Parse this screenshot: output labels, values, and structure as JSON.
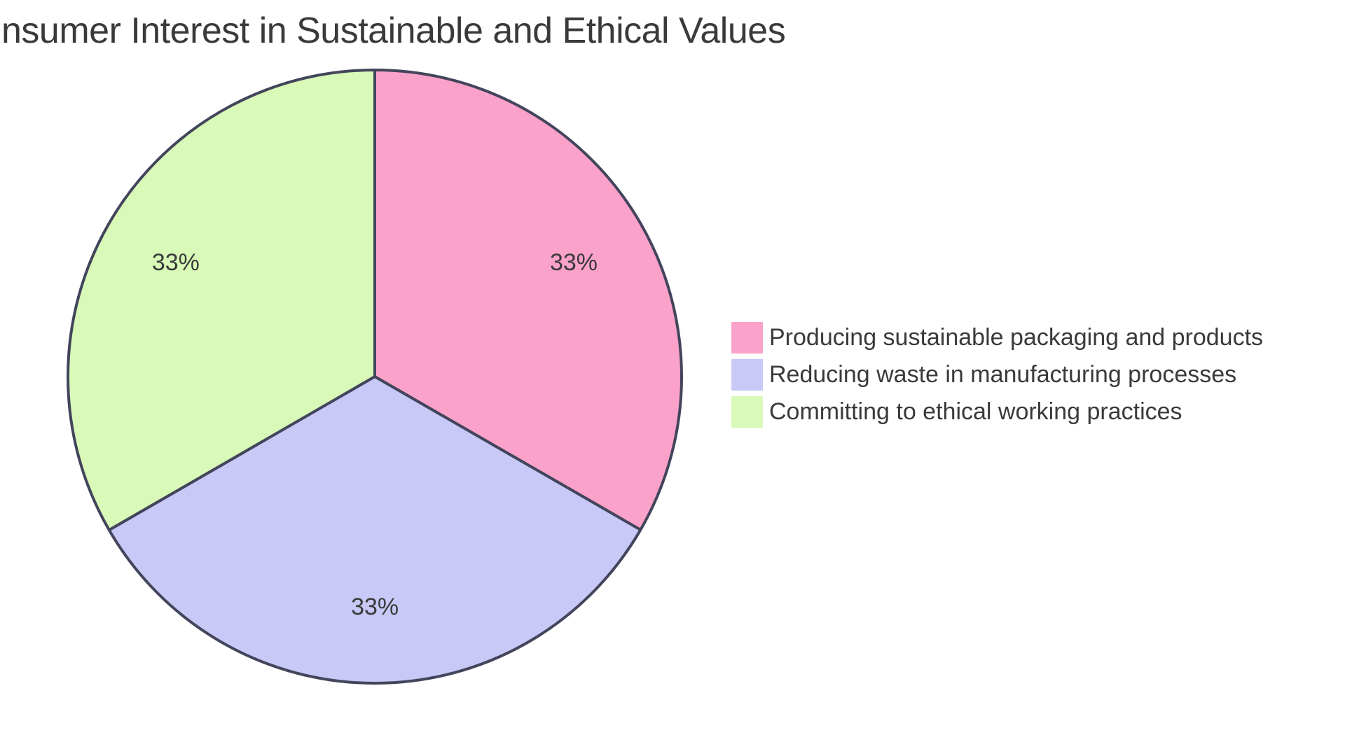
{
  "page": {
    "background_color": "#FFFFFF"
  },
  "chart_data": {
    "type": "pie",
    "title": "nsumer Interest in Sustainable and Ethical Values",
    "title_color": "#3A3A3A",
    "direction": "clockwise",
    "start_angle_deg": 0,
    "segments": [
      {
        "label": "Producing sustainable packaging and products",
        "value": 33.33,
        "display_value": "33%",
        "color": "#FBA2CA"
      },
      {
        "label": "Reducing waste in manufacturing processes",
        "value": 33.33,
        "display_value": "33%",
        "color": "#C9C9F7"
      },
      {
        "label": "Committing to ethical working practices",
        "value": 33.34,
        "display_value": "33%",
        "color": "#D8F9B8"
      }
    ],
    "stroke_color": "#43455C",
    "stroke_width": 4,
    "label_color": "#3A3A3A",
    "legend_position": "right",
    "grid": false
  }
}
